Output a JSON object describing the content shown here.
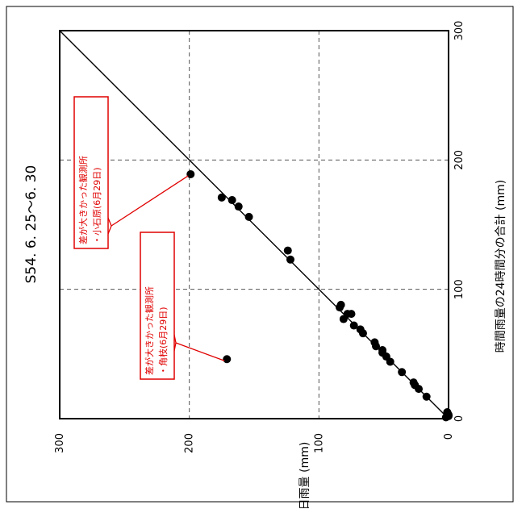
{
  "chart_data": {
    "type": "scatter",
    "title": "S54. 6. 25～6. 30",
    "xlabel": "時間雨量の24時間分の合計 (mm)",
    "ylabel": "日雨量 (mm)",
    "xlim": [
      0,
      300
    ],
    "ylim": [
      0,
      300
    ],
    "x_ticks": [
      "0",
      "100",
      "200",
      "300"
    ],
    "y_ticks": [
      "0",
      "100",
      "200",
      "300"
    ],
    "grid": true,
    "reference_line": "y = x",
    "points": [
      {
        "x": 1,
        "y": 2
      },
      {
        "x": 2,
        "y": 0
      },
      {
        "x": 3,
        "y": 0
      },
      {
        "x": 5,
        "y": 1
      },
      {
        "x": 17,
        "y": 17
      },
      {
        "x": 23,
        "y": 23
      },
      {
        "x": 26,
        "y": 26
      },
      {
        "x": 28,
        "y": 27
      },
      {
        "x": 36,
        "y": 36
      },
      {
        "x": 44,
        "y": 45
      },
      {
        "x": 48,
        "y": 48
      },
      {
        "x": 51,
        "y": 51
      },
      {
        "x": 53,
        "y": 51
      },
      {
        "x": 56,
        "y": 56
      },
      {
        "x": 59,
        "y": 57
      },
      {
        "x": 66,
        "y": 66
      },
      {
        "x": 69,
        "y": 68
      },
      {
        "x": 72,
        "y": 73
      },
      {
        "x": 77,
        "y": 81
      },
      {
        "x": 81,
        "y": 78
      },
      {
        "x": 81,
        "y": 75
      },
      {
        "x": 86,
        "y": 84
      },
      {
        "x": 88,
        "y": 83
      },
      {
        "x": 123,
        "y": 122
      },
      {
        "x": 130,
        "y": 124
      },
      {
        "x": 156,
        "y": 154
      },
      {
        "x": 164,
        "y": 162
      },
      {
        "x": 169,
        "y": 167
      },
      {
        "x": 171,
        "y": 175
      },
      {
        "x": 189,
        "y": 199
      },
      {
        "x": 46,
        "y": 171
      }
    ],
    "annotations": [
      {
        "lines": [
          "差が大きかった観測所",
          "・小石原(6月29日)"
        ],
        "point": {
          "x": 189,
          "y": 199
        }
      },
      {
        "lines": [
          "差が大きかった観測所",
          "・角枝(6月29日)"
        ],
        "point": {
          "x": 46,
          "y": 171
        }
      }
    ],
    "colors": {
      "points": "#000000",
      "annotation": "#e00000",
      "grid": "#555555"
    }
  }
}
